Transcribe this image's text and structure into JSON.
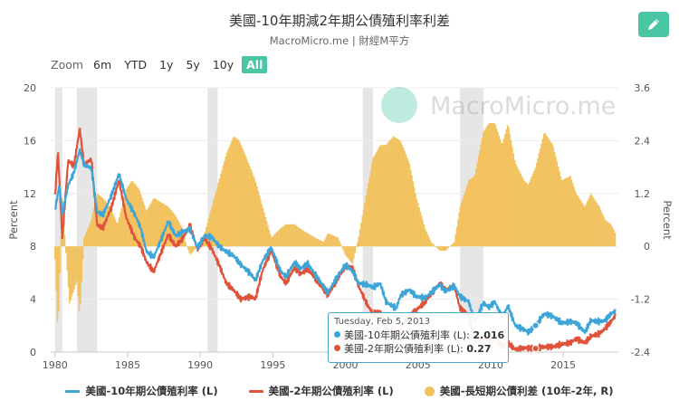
{
  "title": "美國-10年期減2年期公債殖利率利差",
  "subtitle": "MacroMicro.me | 財經M平方",
  "watermark": "MacroMicro.me",
  "toolbar": {
    "zoom_label": "Zoom",
    "buttons": [
      "6m",
      "YTD",
      "1y",
      "5y",
      "10y",
      "All"
    ],
    "active": "All"
  },
  "colors": {
    "accent": "#4bc6a4",
    "ten_year": "#3ea5d8",
    "two_year": "#e0533a",
    "spread": "#f1c25e",
    "recession": "#e6e6e6"
  },
  "tooltip": {
    "date": "Tuesday, Feb 5, 2013",
    "row1_label": "美國-10年期公債殖利率 (L):",
    "row1_value": "2.016",
    "row2_label": "美國-2年期公債殖利率 (L):",
    "row2_value": "0.27"
  },
  "chart_data": {
    "type": "line",
    "title": "美國-10年期減2年期公債殖利率利差",
    "xlabel": "",
    "ylabel_left": "Percent",
    "ylabel_right": "Percent",
    "xlim": [
      1979.7,
      2018.8
    ],
    "ylim_left": [
      0,
      20
    ],
    "ylim_right": [
      -2.4,
      3.6
    ],
    "x_ticks": [
      "1980",
      "1985",
      "1990",
      "1995",
      "2000",
      "2005",
      "2010",
      "2015"
    ],
    "y_ticks_left": [
      "0",
      "4",
      "8",
      "12",
      "16",
      "20"
    ],
    "y_ticks_right": [
      "-2.4",
      "-1.2",
      "0",
      "1.2",
      "2.4",
      "3.6"
    ],
    "recessions": [
      [
        1980.0,
        1980.5
      ],
      [
        1981.5,
        1982.9
      ],
      [
        1990.5,
        1991.2
      ],
      [
        2001.2,
        2001.9
      ],
      [
        2007.9,
        2009.5
      ]
    ],
    "series": [
      {
        "name": "美國-10年期公債殖利率 (L)",
        "axis": "left",
        "points": [
          [
            1980.0,
            10.8
          ],
          [
            1980.3,
            12.6
          ],
          [
            1980.5,
            10.4
          ],
          [
            1980.9,
            12.6
          ],
          [
            1981.3,
            13.6
          ],
          [
            1981.7,
            15.3
          ],
          [
            1982.0,
            14.2
          ],
          [
            1982.5,
            13.9
          ],
          [
            1982.9,
            10.6
          ],
          [
            1983.3,
            10.4
          ],
          [
            1983.9,
            11.9
          ],
          [
            1984.4,
            13.5
          ],
          [
            1984.9,
            11.6
          ],
          [
            1985.5,
            10.4
          ],
          [
            1985.9,
            9.4
          ],
          [
            1986.3,
            7.6
          ],
          [
            1986.8,
            7.2
          ],
          [
            1987.3,
            8.5
          ],
          [
            1987.8,
            9.9
          ],
          [
            1988.3,
            8.8
          ],
          [
            1988.8,
            9.1
          ],
          [
            1989.3,
            9.3
          ],
          [
            1989.8,
            7.9
          ],
          [
            1990.3,
            8.8
          ],
          [
            1990.8,
            8.7
          ],
          [
            1991.3,
            8.0
          ],
          [
            1991.8,
            7.6
          ],
          [
            1992.3,
            7.3
          ],
          [
            1992.8,
            6.6
          ],
          [
            1993.5,
            5.9
          ],
          [
            1993.8,
            5.4
          ],
          [
            1994.3,
            6.9
          ],
          [
            1994.9,
            7.9
          ],
          [
            1995.5,
            6.2
          ],
          [
            1995.9,
            5.7
          ],
          [
            1996.5,
            6.8
          ],
          [
            1996.9,
            6.3
          ],
          [
            1997.4,
            6.7
          ],
          [
            1997.9,
            5.9
          ],
          [
            1998.8,
            4.5
          ],
          [
            1999.5,
            5.8
          ],
          [
            2000.0,
            6.6
          ],
          [
            2000.5,
            6.1
          ],
          [
            2000.9,
            5.2
          ],
          [
            2001.5,
            5.1
          ],
          [
            2001.9,
            4.9
          ],
          [
            2002.4,
            5.2
          ],
          [
            2002.8,
            3.8
          ],
          [
            2003.5,
            3.3
          ],
          [
            2003.8,
            4.3
          ],
          [
            2004.4,
            4.7
          ],
          [
            2004.9,
            4.2
          ],
          [
            2005.5,
            4.1
          ],
          [
            2005.9,
            4.5
          ],
          [
            2006.5,
            5.1
          ],
          [
            2006.9,
            4.6
          ],
          [
            2007.5,
            5.0
          ],
          [
            2007.9,
            4.2
          ],
          [
            2008.5,
            3.8
          ],
          [
            2008.9,
            2.3
          ],
          [
            2009.5,
            3.7
          ],
          [
            2009.9,
            3.4
          ],
          [
            2010.3,
            3.8
          ],
          [
            2010.8,
            2.6
          ],
          [
            2011.2,
            3.5
          ],
          [
            2011.7,
            2.0
          ],
          [
            2012.3,
            1.7
          ],
          [
            2012.6,
            1.5
          ],
          [
            2013.1,
            2.0
          ],
          [
            2013.7,
            2.9
          ],
          [
            2014.3,
            2.7
          ],
          [
            2014.9,
            2.2
          ],
          [
            2015.5,
            2.3
          ],
          [
            2015.9,
            2.2
          ],
          [
            2016.5,
            1.5
          ],
          [
            2016.9,
            2.4
          ],
          [
            2017.5,
            2.3
          ],
          [
            2017.9,
            2.4
          ],
          [
            2018.3,
            2.9
          ],
          [
            2018.6,
            3.1
          ]
        ]
      },
      {
        "name": "美國-2年期公債殖利率 (L)",
        "axis": "left",
        "points": [
          [
            1980.0,
            11.8
          ],
          [
            1980.2,
            15.2
          ],
          [
            1980.5,
            8.6
          ],
          [
            1980.9,
            14.5
          ],
          [
            1981.3,
            14.1
          ],
          [
            1981.7,
            16.9
          ],
          [
            1982.0,
            14.2
          ],
          [
            1982.5,
            14.6
          ],
          [
            1982.9,
            9.6
          ],
          [
            1983.3,
            9.4
          ],
          [
            1983.9,
            11.0
          ],
          [
            1984.4,
            13.0
          ],
          [
            1984.9,
            10.2
          ],
          [
            1985.5,
            8.6
          ],
          [
            1985.9,
            8.0
          ],
          [
            1986.3,
            6.8
          ],
          [
            1986.8,
            6.1
          ],
          [
            1987.3,
            7.5
          ],
          [
            1987.8,
            8.9
          ],
          [
            1988.3,
            8.0
          ],
          [
            1988.8,
            8.6
          ],
          [
            1989.3,
            9.6
          ],
          [
            1989.8,
            7.8
          ],
          [
            1990.3,
            8.6
          ],
          [
            1990.8,
            7.8
          ],
          [
            1991.3,
            6.6
          ],
          [
            1991.8,
            5.2
          ],
          [
            1992.3,
            4.7
          ],
          [
            1992.8,
            4.0
          ],
          [
            1993.5,
            4.2
          ],
          [
            1993.8,
            4.0
          ],
          [
            1994.3,
            6.2
          ],
          [
            1994.9,
            7.7
          ],
          [
            1995.5,
            5.8
          ],
          [
            1995.9,
            5.2
          ],
          [
            1996.5,
            6.4
          ],
          [
            1996.9,
            5.9
          ],
          [
            1997.4,
            6.3
          ],
          [
            1997.9,
            5.6
          ],
          [
            1998.8,
            4.3
          ],
          [
            1999.5,
            5.6
          ],
          [
            2000.0,
            6.5
          ],
          [
            2000.5,
            6.4
          ],
          [
            2000.9,
            5.0
          ],
          [
            2001.5,
            3.6
          ],
          [
            2001.9,
            2.9
          ],
          [
            2002.4,
            3.1
          ],
          [
            2002.8,
            1.8
          ],
          [
            2003.5,
            1.3
          ],
          [
            2003.8,
            1.9
          ],
          [
            2004.4,
            2.7
          ],
          [
            2004.9,
            3.2
          ],
          [
            2005.5,
            3.8
          ],
          [
            2005.9,
            4.4
          ],
          [
            2006.5,
            5.2
          ],
          [
            2006.9,
            4.7
          ],
          [
            2007.5,
            5.0
          ],
          [
            2007.9,
            3.3
          ],
          [
            2008.5,
            2.8
          ],
          [
            2008.9,
            0.9
          ],
          [
            2009.5,
            1.1
          ],
          [
            2009.9,
            0.9
          ],
          [
            2010.3,
            1.0
          ],
          [
            2010.8,
            0.4
          ],
          [
            2011.2,
            0.7
          ],
          [
            2011.7,
            0.2
          ],
          [
            2012.3,
            0.3
          ],
          [
            2012.6,
            0.3
          ],
          [
            2013.1,
            0.3
          ],
          [
            2013.7,
            0.4
          ],
          [
            2014.3,
            0.4
          ],
          [
            2014.9,
            0.6
          ],
          [
            2015.5,
            0.7
          ],
          [
            2015.9,
            1.0
          ],
          [
            2016.5,
            0.7
          ],
          [
            2016.9,
            1.2
          ],
          [
            2017.5,
            1.4
          ],
          [
            2017.9,
            1.8
          ],
          [
            2018.3,
            2.3
          ],
          [
            2018.6,
            2.8
          ]
        ]
      },
      {
        "name": "美國-長短期公債利差 (10年-2年, R)",
        "axis": "right",
        "type": "bar",
        "points": [
          [
            1980.0,
            -0.3
          ],
          [
            1980.2,
            -2.0
          ],
          [
            1980.5,
            1.1
          ],
          [
            1980.8,
            -0.4
          ],
          [
            1981.0,
            -1.3
          ],
          [
            1981.5,
            -0.8
          ],
          [
            1981.7,
            -1.6
          ],
          [
            1982.0,
            0.2
          ],
          [
            1982.5,
            0.6
          ],
          [
            1982.9,
            1.2
          ],
          [
            1983.3,
            1.1
          ],
          [
            1983.8,
            0.9
          ],
          [
            1984.3,
            0.5
          ],
          [
            1984.9,
            1.3
          ],
          [
            1985.3,
            1.5
          ],
          [
            1985.8,
            1.3
          ],
          [
            1986.3,
            0.8
          ],
          [
            1986.8,
            1.1
          ],
          [
            1987.3,
            1.0
          ],
          [
            1987.8,
            0.9
          ],
          [
            1988.3,
            0.7
          ],
          [
            1988.8,
            0.4
          ],
          [
            1989.0,
            0.1
          ],
          [
            1989.3,
            -0.2
          ],
          [
            1989.8,
            0.0
          ],
          [
            1990.3,
            0.3
          ],
          [
            1990.8,
            0.9
          ],
          [
            1991.3,
            1.5
          ],
          [
            1991.8,
            2.1
          ],
          [
            1992.3,
            2.5
          ],
          [
            1992.7,
            2.4
          ],
          [
            1993.2,
            2.0
          ],
          [
            1993.8,
            1.5
          ],
          [
            1994.3,
            0.9
          ],
          [
            1994.9,
            0.2
          ],
          [
            1995.5,
            0.4
          ],
          [
            1995.9,
            0.5
          ],
          [
            1996.5,
            0.5
          ],
          [
            1996.9,
            0.4
          ],
          [
            1997.4,
            0.3
          ],
          [
            1997.9,
            0.2
          ],
          [
            1998.5,
            0.1
          ],
          [
            1998.8,
            0.3
          ],
          [
            1999.5,
            0.2
          ],
          [
            2000.0,
            -0.2
          ],
          [
            2000.5,
            -0.4
          ],
          [
            2000.9,
            0.2
          ],
          [
            2001.5,
            1.3
          ],
          [
            2001.9,
            2.0
          ],
          [
            2002.4,
            2.3
          ],
          [
            2002.8,
            2.3
          ],
          [
            2003.3,
            2.5
          ],
          [
            2003.8,
            2.4
          ],
          [
            2004.4,
            1.9
          ],
          [
            2004.9,
            1.1
          ],
          [
            2005.5,
            0.4
          ],
          [
            2005.9,
            0.1
          ],
          [
            2006.5,
            -0.1
          ],
          [
            2006.9,
            -0.1
          ],
          [
            2007.5,
            0.1
          ],
          [
            2007.9,
            0.9
          ],
          [
            2008.5,
            1.5
          ],
          [
            2008.9,
            1.6
          ],
          [
            2009.5,
            2.6
          ],
          [
            2009.9,
            2.8
          ],
          [
            2010.3,
            2.8
          ],
          [
            2010.8,
            2.3
          ],
          [
            2011.2,
            2.8
          ],
          [
            2011.7,
            1.9
          ],
          [
            2012.3,
            1.5
          ],
          [
            2012.6,
            1.4
          ],
          [
            2013.1,
            1.8
          ],
          [
            2013.7,
            2.6
          ],
          [
            2014.3,
            2.3
          ],
          [
            2014.9,
            1.5
          ],
          [
            2015.5,
            1.6
          ],
          [
            2015.9,
            1.2
          ],
          [
            2016.5,
            0.9
          ],
          [
            2016.9,
            1.2
          ],
          [
            2017.5,
            0.9
          ],
          [
            2017.9,
            0.6
          ],
          [
            2018.3,
            0.5
          ],
          [
            2018.6,
            0.3
          ]
        ]
      }
    ]
  }
}
